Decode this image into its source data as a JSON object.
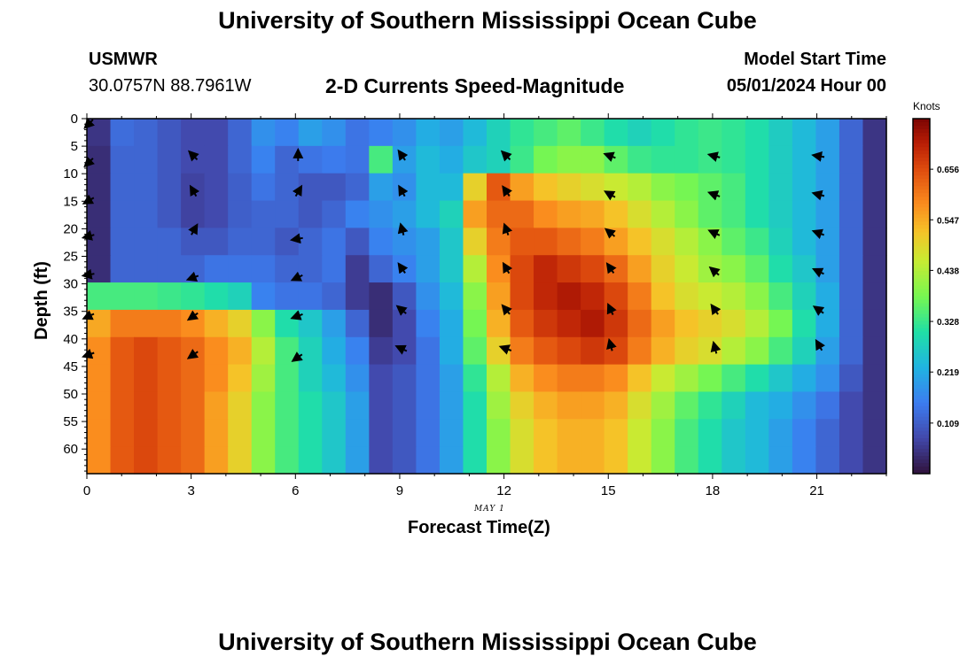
{
  "page": {
    "title_top": "University of Southern Mississippi Ocean Cube",
    "title_bottom": "University of Southern Mississippi Ocean Cube",
    "station_name": "USMWR",
    "station_coords": "30.0757N  88.7961W",
    "model_start_label": "Model Start Time",
    "model_start_value": "05/01/2024 Hour 00"
  },
  "chart_data": {
    "type": "heatmap",
    "title": "2-D Currents Speed-Magnitude",
    "xlabel": "Forecast Time(Z)",
    "ylabel": "Depth (ft)",
    "date_label": "MAY 1",
    "colorbar_unit": "Knots",
    "x_range": [
      0,
      23
    ],
    "y_range": [
      0,
      64
    ],
    "x_ticks": [
      0,
      3,
      6,
      9,
      12,
      15,
      18,
      21
    ],
    "x_tick_labels": [
      "0",
      "3",
      "6",
      "9",
      "12",
      "15",
      "18",
      "21"
    ],
    "y_ticks": [
      0,
      5,
      10,
      15,
      20,
      25,
      30,
      35,
      40,
      45,
      50,
      55,
      60
    ],
    "y_tick_labels": [
      "0",
      "5",
      "10",
      "15",
      "20",
      "25",
      "30",
      "35",
      "40",
      "45",
      "50",
      "55",
      "60"
    ],
    "colorbar_min": 0.0,
    "colorbar_max": 0.765,
    "colorbar_ticks": [
      0.109,
      0.219,
      0.328,
      0.438,
      0.547,
      0.656
    ],
    "colorbar_tick_labels": [
      "0.109",
      "0.219",
      "0.328",
      "0.438",
      "0.547",
      "0.656"
    ],
    "depth_bins": [
      0,
      5,
      10,
      15,
      20,
      25,
      30,
      35,
      40,
      45,
      50,
      55,
      60
    ],
    "speed_knots": [
      [
        0.05,
        0.13,
        0.12,
        0.1,
        0.08,
        0.08,
        0.12,
        0.18,
        0.16,
        0.2,
        0.18,
        0.14,
        0.16,
        0.18,
        0.22,
        0.2,
        0.24,
        0.28,
        0.32,
        0.34,
        0.36,
        0.33,
        0.3,
        0.28,
        0.3,
        0.32,
        0.33,
        0.32,
        0.3,
        0.27,
        0.24,
        0.2,
        0.12,
        0.05
      ],
      [
        0.04,
        0.12,
        0.12,
        0.1,
        0.08,
        0.08,
        0.12,
        0.16,
        0.12,
        0.14,
        0.15,
        0.14,
        0.34,
        0.2,
        0.24,
        0.22,
        0.26,
        0.28,
        0.33,
        0.38,
        0.4,
        0.4,
        0.36,
        0.33,
        0.32,
        0.32,
        0.33,
        0.32,
        0.3,
        0.27,
        0.24,
        0.2,
        0.12,
        0.05
      ],
      [
        0.04,
        0.12,
        0.12,
        0.1,
        0.07,
        0.08,
        0.11,
        0.14,
        0.12,
        0.1,
        0.1,
        0.12,
        0.2,
        0.18,
        0.24,
        0.24,
        0.5,
        0.64,
        0.56,
        0.52,
        0.5,
        0.48,
        0.46,
        0.44,
        0.4,
        0.38,
        0.36,
        0.34,
        0.3,
        0.27,
        0.24,
        0.2,
        0.12,
        0.05
      ],
      [
        0.04,
        0.12,
        0.12,
        0.1,
        0.07,
        0.08,
        0.11,
        0.12,
        0.12,
        0.1,
        0.12,
        0.16,
        0.18,
        0.2,
        0.24,
        0.28,
        0.56,
        0.62,
        0.62,
        0.58,
        0.56,
        0.55,
        0.52,
        0.48,
        0.44,
        0.4,
        0.36,
        0.34,
        0.3,
        0.27,
        0.24,
        0.2,
        0.12,
        0.05
      ],
      [
        0.04,
        0.12,
        0.12,
        0.12,
        0.1,
        0.1,
        0.12,
        0.12,
        0.1,
        0.12,
        0.14,
        0.1,
        0.16,
        0.18,
        0.2,
        0.26,
        0.5,
        0.6,
        0.64,
        0.64,
        0.62,
        0.6,
        0.56,
        0.52,
        0.48,
        0.44,
        0.4,
        0.36,
        0.33,
        0.28,
        0.24,
        0.2,
        0.12,
        0.05
      ],
      [
        0.04,
        0.12,
        0.12,
        0.12,
        0.12,
        0.14,
        0.14,
        0.14,
        0.12,
        0.12,
        0.14,
        0.06,
        0.12,
        0.16,
        0.2,
        0.26,
        0.44,
        0.58,
        0.66,
        0.7,
        0.68,
        0.66,
        0.62,
        0.56,
        0.5,
        0.46,
        0.42,
        0.4,
        0.36,
        0.3,
        0.26,
        0.2,
        0.12,
        0.05
      ],
      [
        0.34,
        0.34,
        0.34,
        0.33,
        0.32,
        0.3,
        0.28,
        0.16,
        0.14,
        0.14,
        0.12,
        0.06,
        0.04,
        0.1,
        0.18,
        0.24,
        0.4,
        0.56,
        0.66,
        0.7,
        0.72,
        0.7,
        0.66,
        0.6,
        0.52,
        0.48,
        0.46,
        0.44,
        0.4,
        0.34,
        0.28,
        0.22,
        0.12,
        0.05
      ],
      [
        0.55,
        0.6,
        0.6,
        0.6,
        0.58,
        0.54,
        0.5,
        0.4,
        0.3,
        0.26,
        0.2,
        0.12,
        0.04,
        0.08,
        0.16,
        0.22,
        0.38,
        0.54,
        0.64,
        0.68,
        0.7,
        0.72,
        0.68,
        0.62,
        0.56,
        0.52,
        0.5,
        0.48,
        0.44,
        0.38,
        0.3,
        0.22,
        0.12,
        0.05
      ],
      [
        0.58,
        0.64,
        0.66,
        0.64,
        0.62,
        0.58,
        0.54,
        0.44,
        0.34,
        0.28,
        0.22,
        0.16,
        0.06,
        0.08,
        0.14,
        0.22,
        0.36,
        0.5,
        0.6,
        0.64,
        0.66,
        0.68,
        0.66,
        0.6,
        0.54,
        0.5,
        0.48,
        0.44,
        0.4,
        0.34,
        0.28,
        0.2,
        0.12,
        0.05
      ],
      [
        0.58,
        0.64,
        0.66,
        0.64,
        0.62,
        0.58,
        0.52,
        0.42,
        0.34,
        0.28,
        0.24,
        0.18,
        0.08,
        0.1,
        0.14,
        0.2,
        0.32,
        0.44,
        0.54,
        0.58,
        0.6,
        0.6,
        0.58,
        0.52,
        0.46,
        0.42,
        0.38,
        0.34,
        0.3,
        0.26,
        0.22,
        0.18,
        0.1,
        0.05
      ],
      [
        0.58,
        0.64,
        0.66,
        0.64,
        0.62,
        0.56,
        0.5,
        0.4,
        0.34,
        0.3,
        0.26,
        0.2,
        0.08,
        0.1,
        0.14,
        0.2,
        0.3,
        0.42,
        0.5,
        0.54,
        0.56,
        0.56,
        0.54,
        0.48,
        0.42,
        0.36,
        0.32,
        0.28,
        0.24,
        0.22,
        0.18,
        0.14,
        0.08,
        0.05
      ],
      [
        0.58,
        0.64,
        0.66,
        0.64,
        0.62,
        0.56,
        0.5,
        0.4,
        0.34,
        0.3,
        0.26,
        0.2,
        0.08,
        0.1,
        0.14,
        0.2,
        0.3,
        0.4,
        0.48,
        0.52,
        0.54,
        0.54,
        0.52,
        0.46,
        0.4,
        0.34,
        0.3,
        0.26,
        0.24,
        0.2,
        0.16,
        0.12,
        0.08,
        0.05
      ],
      [
        0.58,
        0.64,
        0.66,
        0.64,
        0.62,
        0.56,
        0.5,
        0.4,
        0.34,
        0.3,
        0.26,
        0.2,
        0.08,
        0.1,
        0.14,
        0.2,
        0.3,
        0.4,
        0.48,
        0.52,
        0.54,
        0.54,
        0.52,
        0.46,
        0.4,
        0.34,
        0.3,
        0.26,
        0.24,
        0.2,
        0.16,
        0.12,
        0.08,
        0.05
      ]
    ],
    "vectors": [
      {
        "t": 0.0,
        "depth": 0.5,
        "angle_deg": -135
      },
      {
        "t": 0.0,
        "depth": 7.5,
        "angle_deg": -135
      },
      {
        "t": 0.0,
        "depth": 14.5,
        "angle_deg": -150
      },
      {
        "t": 0.0,
        "depth": 21,
        "angle_deg": -165
      },
      {
        "t": 0.0,
        "depth": 28,
        "angle_deg": -170
      },
      {
        "t": 0.0,
        "depth": 35.5,
        "angle_deg": -155
      },
      {
        "t": 0.0,
        "depth": 42.5,
        "angle_deg": -160
      },
      {
        "t": 3.0,
        "depth": 6.5,
        "angle_deg": 135
      },
      {
        "t": 3.0,
        "depth": 13,
        "angle_deg": 120
      },
      {
        "t": 3.0,
        "depth": 20,
        "angle_deg": 60
      },
      {
        "t": 3.0,
        "depth": 28.5,
        "angle_deg": -160
      },
      {
        "t": 3.0,
        "depth": 35.5,
        "angle_deg": -145
      },
      {
        "t": 3.0,
        "depth": 42.5,
        "angle_deg": -145
      },
      {
        "t": 6.0,
        "depth": 6.5,
        "angle_deg": 90
      },
      {
        "t": 6.0,
        "depth": 13,
        "angle_deg": 60
      },
      {
        "t": 6.0,
        "depth": 21.5,
        "angle_deg": -170
      },
      {
        "t": 6.0,
        "depth": 28.5,
        "angle_deg": -155
      },
      {
        "t": 6.0,
        "depth": 35.5,
        "angle_deg": -160
      },
      {
        "t": 6.0,
        "depth": 43,
        "angle_deg": -145
      },
      {
        "t": 9.0,
        "depth": 6.5,
        "angle_deg": 125
      },
      {
        "t": 9.0,
        "depth": 13,
        "angle_deg": 120
      },
      {
        "t": 9.0,
        "depth": 20,
        "angle_deg": 105
      },
      {
        "t": 9.0,
        "depth": 27,
        "angle_deg": 125
      },
      {
        "t": 9.0,
        "depth": 34.5,
        "angle_deg": 140
      },
      {
        "t": 9.0,
        "depth": 41.5,
        "angle_deg": 155
      },
      {
        "t": 12.0,
        "depth": 6.5,
        "angle_deg": 135
      },
      {
        "t": 12.0,
        "depth": 13,
        "angle_deg": 125
      },
      {
        "t": 12.0,
        "depth": 20,
        "angle_deg": 110
      },
      {
        "t": 12.0,
        "depth": 27,
        "angle_deg": 120
      },
      {
        "t": 12.0,
        "depth": 34.5,
        "angle_deg": 130
      },
      {
        "t": 12.0,
        "depth": 41.5,
        "angle_deg": 160
      },
      {
        "t": 15.0,
        "depth": 6.5,
        "angle_deg": 160
      },
      {
        "t": 15.0,
        "depth": 13.5,
        "angle_deg": 150
      },
      {
        "t": 15.0,
        "depth": 20.5,
        "angle_deg": 140
      },
      {
        "t": 15.0,
        "depth": 27,
        "angle_deg": 125
      },
      {
        "t": 15.0,
        "depth": 34.5,
        "angle_deg": 115
      },
      {
        "t": 15.0,
        "depth": 41,
        "angle_deg": 105
      },
      {
        "t": 18.0,
        "depth": 6.5,
        "angle_deg": 165
      },
      {
        "t": 18.0,
        "depth": 13.5,
        "angle_deg": 160
      },
      {
        "t": 18.0,
        "depth": 20.5,
        "angle_deg": 155
      },
      {
        "t": 18.0,
        "depth": 27.5,
        "angle_deg": 140
      },
      {
        "t": 18.0,
        "depth": 34.5,
        "angle_deg": 125
      },
      {
        "t": 18.0,
        "depth": 41.5,
        "angle_deg": 105
      },
      {
        "t": 21.0,
        "depth": 6.5,
        "angle_deg": 170
      },
      {
        "t": 21.0,
        "depth": 13.5,
        "angle_deg": 165
      },
      {
        "t": 21.0,
        "depth": 20.5,
        "angle_deg": 160
      },
      {
        "t": 21.0,
        "depth": 27.5,
        "angle_deg": 155
      },
      {
        "t": 21.0,
        "depth": 34.5,
        "angle_deg": 145
      },
      {
        "t": 21.0,
        "depth": 41,
        "angle_deg": 120
      }
    ]
  }
}
